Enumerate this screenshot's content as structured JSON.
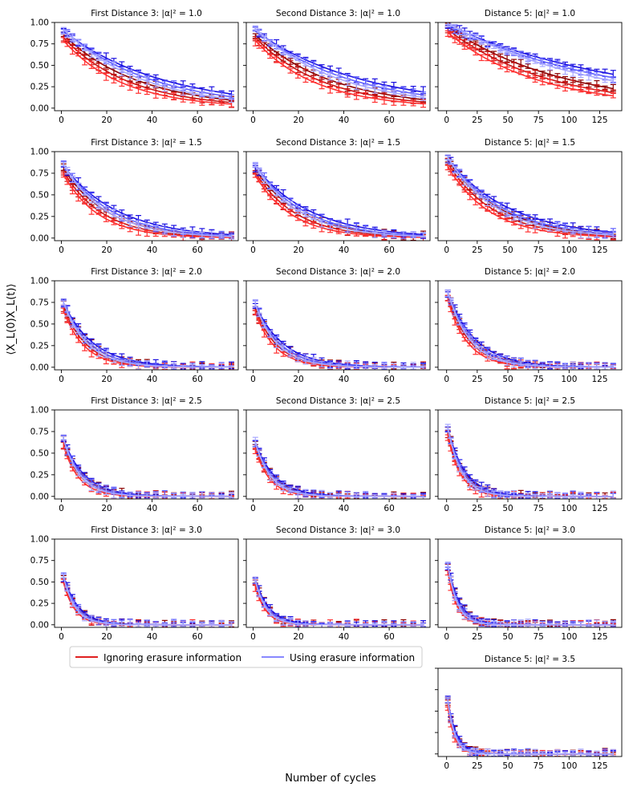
{
  "figure": {
    "ylabel": "⟨X_L(0)X_L(t)⟩",
    "xlabel": "Number of cycles",
    "legend": {
      "ignoring": "Ignoring erasure information",
      "using": "Using erasure information"
    },
    "colors": {
      "ignoring": [
        "#8b0000",
        "#c81414",
        "#ff3030"
      ],
      "using": [
        "#1a10e0",
        "#6060ff",
        "#a8a8ff"
      ]
    }
  },
  "chart_data": [
    {
      "type": "line",
      "title": "First Distance 3: |α|² = 1.0",
      "xlim": [
        -3,
        78
      ],
      "ylim": [
        -0.03,
        1.0
      ],
      "xticks": [
        0,
        20,
        40,
        60
      ],
      "yticks": [
        0.0,
        0.25,
        0.5,
        0.75,
        1.0
      ],
      "decay": {
        "ignoring": [
          0.88,
          0.034
        ],
        "using": [
          0.92,
          0.026
        ]
      }
    },
    {
      "type": "line",
      "title": "Second Distance 3: |α|² = 1.0",
      "xlim": [
        -3,
        78
      ],
      "ylim": [
        -0.03,
        1.0
      ],
      "xticks": [
        0,
        20,
        40,
        60
      ],
      "yticks": [
        0.0,
        0.25,
        0.5,
        0.75,
        1.0
      ],
      "decay": {
        "ignoring": [
          0.88,
          0.033
        ],
        "using": [
          0.92,
          0.024
        ]
      }
    },
    {
      "type": "line",
      "title": "Distance 5: |α|² = 1.0",
      "xlim": [
        -7,
        143
      ],
      "ylim": [
        -0.03,
        1.0
      ],
      "xticks": [
        0,
        25,
        50,
        75,
        100,
        125
      ],
      "yticks": [
        0.0,
        0.25,
        0.5,
        0.75,
        1.0
      ],
      "decay": {
        "ignoring": [
          0.96,
          0.012
        ],
        "using": [
          0.97,
          0.0075
        ]
      }
    },
    {
      "type": "line",
      "title": "First Distance 3: |α|² = 1.5",
      "xlim": [
        -3,
        78
      ],
      "ylim": [
        -0.03,
        1.0
      ],
      "xticks": [
        0,
        20,
        40,
        60
      ],
      "yticks": [
        0.0,
        0.25,
        0.5,
        0.75,
        1.0
      ],
      "decay": {
        "ignoring": [
          0.84,
          0.057
        ],
        "using": [
          0.87,
          0.047
        ]
      }
    },
    {
      "type": "line",
      "title": "Second Distance 3: |α|² = 1.5",
      "xlim": [
        -3,
        78
      ],
      "ylim": [
        -0.03,
        1.0
      ],
      "xticks": [
        0,
        20,
        40,
        60
      ],
      "yticks": [
        0.0,
        0.25,
        0.5,
        0.75,
        1.0
      ],
      "decay": {
        "ignoring": [
          0.83,
          0.055
        ],
        "using": [
          0.86,
          0.046
        ]
      }
    },
    {
      "type": "line",
      "title": "Distance 5: |α|² = 1.5",
      "xlim": [
        -7,
        143
      ],
      "ylim": [
        -0.03,
        1.0
      ],
      "xticks": [
        0,
        25,
        50,
        75,
        100,
        125
      ],
      "yticks": [
        0.0,
        0.25,
        0.5,
        0.75,
        1.0
      ],
      "decay": {
        "ignoring": [
          0.92,
          0.026
        ],
        "using": [
          0.93,
          0.022
        ]
      }
    },
    {
      "type": "line",
      "title": "First Distance 3: |α|² = 2.0",
      "xlim": [
        -3,
        78
      ],
      "ylim": [
        -0.03,
        1.0
      ],
      "xticks": [
        0,
        20,
        40,
        60
      ],
      "yticks": [
        0.0,
        0.25,
        0.5,
        0.75,
        1.0
      ],
      "decay": {
        "ignoring": [
          0.78,
          0.095
        ],
        "using": [
          0.8,
          0.085
        ]
      }
    },
    {
      "type": "line",
      "title": "Second Distance 3: |α|² = 2.0",
      "xlim": [
        -3,
        78
      ],
      "ylim": [
        -0.03,
        1.0
      ],
      "xticks": [
        0,
        20,
        40,
        60
      ],
      "yticks": [
        0.0,
        0.25,
        0.5,
        0.75,
        1.0
      ],
      "decay": {
        "ignoring": [
          0.76,
          0.1
        ],
        "using": [
          0.78,
          0.09
        ]
      }
    },
    {
      "type": "line",
      "title": "Distance 5: |α|² = 2.0",
      "xlim": [
        -7,
        143
      ],
      "ylim": [
        -0.03,
        1.0
      ],
      "xticks": [
        0,
        25,
        50,
        75,
        100,
        125
      ],
      "yticks": [
        0.0,
        0.25,
        0.5,
        0.75,
        1.0
      ],
      "decay": {
        "ignoring": [
          0.89,
          0.055
        ],
        "using": [
          0.9,
          0.05
        ]
      }
    },
    {
      "type": "line",
      "title": "First Distance 3: |α|² = 2.5",
      "xlim": [
        -3,
        78
      ],
      "ylim": [
        -0.03,
        1.0
      ],
      "xticks": [
        0,
        20,
        40,
        60
      ],
      "yticks": [
        0.0,
        0.25,
        0.5,
        0.75,
        1.0
      ],
      "decay": {
        "ignoring": [
          0.72,
          0.13
        ],
        "using": [
          0.73,
          0.12
        ]
      }
    },
    {
      "type": "line",
      "title": "Second Distance 3: |α|² = 2.5",
      "xlim": [
        -3,
        78
      ],
      "ylim": [
        -0.03,
        1.0
      ],
      "xticks": [
        0,
        20,
        40,
        60
      ],
      "yticks": [
        0.0,
        0.25,
        0.5,
        0.75,
        1.0
      ],
      "decay": {
        "ignoring": [
          0.69,
          0.14
        ],
        "using": [
          0.7,
          0.13
        ]
      }
    },
    {
      "type": "line",
      "title": "Distance 5: |α|² = 2.5",
      "xlim": [
        -7,
        143
      ],
      "ylim": [
        -0.03,
        1.0
      ],
      "xticks": [
        0,
        25,
        50,
        75,
        100,
        125
      ],
      "yticks": [
        0.0,
        0.25,
        0.5,
        0.75,
        1.0
      ],
      "decay": {
        "ignoring": [
          0.83,
          0.085
        ],
        "using": [
          0.84,
          0.08
        ]
      }
    },
    {
      "type": "line",
      "title": "First Distance 3: |α|² = 3.0",
      "xlim": [
        -3,
        78
      ],
      "ylim": [
        -0.03,
        1.0
      ],
      "xticks": [
        0,
        20,
        40,
        60
      ],
      "yticks": [
        0.0,
        0.25,
        0.5,
        0.75,
        1.0
      ],
      "decay": {
        "ignoring": [
          0.64,
          0.18
        ],
        "using": [
          0.65,
          0.17
        ]
      }
    },
    {
      "type": "line",
      "title": "Second Distance 3: |α|² = 3.0",
      "xlim": [
        -3,
        78
      ],
      "ylim": [
        -0.03,
        1.0
      ],
      "xticks": [
        0,
        20,
        40,
        60
      ],
      "yticks": [
        0.0,
        0.25,
        0.5,
        0.75,
        1.0
      ],
      "decay": {
        "ignoring": [
          0.6,
          0.19
        ],
        "using": [
          0.61,
          0.18
        ]
      }
    },
    {
      "type": "line",
      "title": "Distance 5: |α|² = 3.0",
      "xlim": [
        -7,
        143
      ],
      "ylim": [
        -0.03,
        1.0
      ],
      "xticks": [
        0,
        25,
        50,
        75,
        100,
        125
      ],
      "yticks": [
        0.0,
        0.25,
        0.5,
        0.75,
        1.0
      ],
      "decay": {
        "ignoring": [
          0.76,
          0.12
        ],
        "using": [
          0.77,
          0.115
        ]
      }
    },
    {
      "type": "line",
      "title": "Distance 5: |α|² = 3.5",
      "xlim": [
        -7,
        143
      ],
      "ylim": [
        -0.03,
        1.0
      ],
      "xticks": [
        0,
        25,
        50,
        75,
        100,
        125
      ],
      "yticks": [],
      "decay": {
        "ignoring": [
          0.7,
          0.16
        ],
        "using": [
          0.71,
          0.155
        ]
      }
    }
  ]
}
